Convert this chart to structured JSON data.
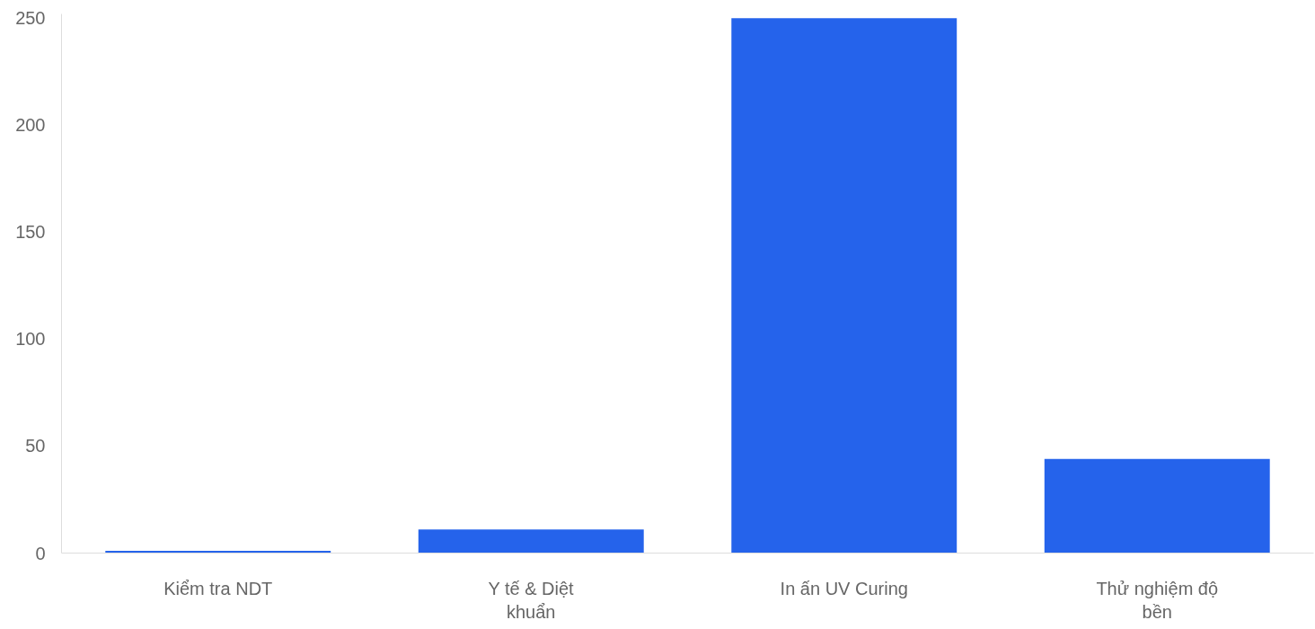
{
  "chart_data": {
    "type": "bar",
    "categories": [
      "Kiểm tra NDT",
      "Y tế & Diệt khuẩn",
      "In ấn UV Curing",
      "Thử nghiệm độ bền"
    ],
    "values": [
      1,
      11,
      250,
      44
    ],
    "color": "#2563eb",
    "ylim": [
      0,
      252
    ],
    "yticks": [
      0,
      50,
      100,
      150,
      200,
      250
    ],
    "grid": false
  }
}
